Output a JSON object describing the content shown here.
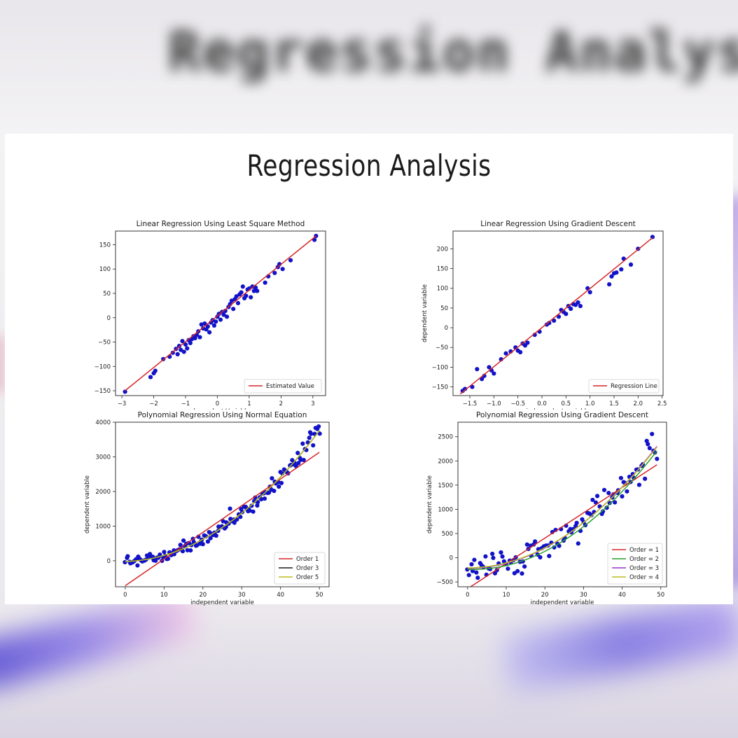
{
  "page_title": "Regression Analysis",
  "colors": {
    "point": "#1212c8",
    "order1": "#d62728",
    "order2": "#2ca02c",
    "order3": "#9b30c8",
    "order3_black": "#1a1a1a",
    "order4": "#bcbd22",
    "order5": "#bcbd22"
  },
  "chart_data": [
    {
      "id": "c1",
      "type": "scatter",
      "title": "Linear Regression Using Least Square Method",
      "xlabel": "dependent Variable",
      "ylabel": "",
      "xlim": [
        -3.2,
        3.4
      ],
      "ylim": [
        -160,
        178
      ],
      "xticks": [
        -3,
        -2,
        -1,
        0,
        1,
        2,
        3
      ],
      "yticks": [
        -150,
        -100,
        -50,
        0,
        50,
        100,
        150
      ],
      "tick_labels_x": [
        "−3",
        "−2",
        "−1",
        "0",
        "1",
        "2",
        "3"
      ],
      "tick_labels_y": [
        "−150",
        "−100",
        "−50",
        "0",
        "50",
        "100",
        "150"
      ],
      "legend_position": "lower-right",
      "points": [
        [
          -2.9,
          -152
        ],
        [
          -2.1,
          -122
        ],
        [
          -2.0,
          -114
        ],
        [
          -1.95,
          -109
        ],
        [
          -1.7,
          -85
        ],
        [
          -1.5,
          -80
        ],
        [
          -1.4,
          -72
        ],
        [
          -1.3,
          -64
        ],
        [
          -1.25,
          -75
        ],
        [
          -1.2,
          -58
        ],
        [
          -1.15,
          -66
        ],
        [
          -1.1,
          -48
        ],
        [
          -1.05,
          -70
        ],
        [
          -1.0,
          -55
        ],
        [
          -0.95,
          -63
        ],
        [
          -0.9,
          -46
        ],
        [
          -0.85,
          -52
        ],
        [
          -0.8,
          -44
        ],
        [
          -0.75,
          -38
        ],
        [
          -0.7,
          -42
        ],
        [
          -0.65,
          -35
        ],
        [
          -0.6,
          -28
        ],
        [
          -0.55,
          -40
        ],
        [
          -0.5,
          -14
        ],
        [
          -0.45,
          -22
        ],
        [
          -0.4,
          -12
        ],
        [
          -0.35,
          -24
        ],
        [
          -0.3,
          -18
        ],
        [
          -0.25,
          -30
        ],
        [
          -0.2,
          -10
        ],
        [
          -0.15,
          -5
        ],
        [
          -0.1,
          -16
        ],
        [
          -0.05,
          -8
        ],
        [
          0.0,
          2
        ],
        [
          0.05,
          8
        ],
        [
          0.1,
          -4
        ],
        [
          0.15,
          12
        ],
        [
          0.2,
          6
        ],
        [
          0.25,
          14
        ],
        [
          0.3,
          2
        ],
        [
          0.35,
          22
        ],
        [
          0.4,
          28
        ],
        [
          0.45,
          35
        ],
        [
          0.5,
          18
        ],
        [
          0.55,
          38
        ],
        [
          0.6,
          44
        ],
        [
          0.65,
          30
        ],
        [
          0.7,
          48
        ],
        [
          0.75,
          52
        ],
        [
          0.8,
          64
        ],
        [
          0.85,
          40
        ],
        [
          0.9,
          45
        ],
        [
          0.95,
          58
        ],
        [
          1.0,
          60
        ],
        [
          1.05,
          42
        ],
        [
          1.1,
          64
        ],
        [
          1.15,
          55
        ],
        [
          1.2,
          62
        ],
        [
          1.25,
          55
        ],
        [
          1.5,
          72
        ],
        [
          1.6,
          85
        ],
        [
          1.8,
          92
        ],
        [
          1.9,
          104
        ],
        [
          1.95,
          110
        ],
        [
          2.05,
          100
        ],
        [
          2.3,
          118
        ],
        [
          3.05,
          160
        ],
        [
          3.1,
          168
        ]
      ],
      "series": [
        {
          "name": "Estimated Value",
          "color": "#d62728",
          "points": [
            [
              -2.9,
              -150
            ],
            [
              3.1,
              168
            ]
          ]
        }
      ]
    },
    {
      "id": "c2",
      "type": "scatter",
      "title": "Linear Regression Using Gradient Descent",
      "xlabel": "independent variable",
      "ylabel": "dependent variable",
      "xlim": [
        -1.85,
        2.52
      ],
      "ylim": [
        -172,
        245
      ],
      "xticks": [
        -1.5,
        -1.0,
        -0.5,
        0.0,
        0.5,
        1.0,
        1.5,
        2.0,
        2.5
      ],
      "yticks": [
        -150,
        -100,
        -50,
        0,
        50,
        100,
        150,
        200
      ],
      "tick_labels_x": [
        "−1.5",
        "−1.0",
        "−0.5",
        "0.0",
        "0.5",
        "1.0",
        "1.5",
        "2.0",
        "2.5"
      ],
      "tick_labels_y": [
        "−150",
        "−100",
        "−50",
        "0",
        "50",
        "100",
        "150",
        "200"
      ],
      "legend_position": "lower-right",
      "points": [
        [
          -1.65,
          -160
        ],
        [
          -1.6,
          -155
        ],
        [
          -1.45,
          -150
        ],
        [
          -1.35,
          -105
        ],
        [
          -1.25,
          -130
        ],
        [
          -1.2,
          -122
        ],
        [
          -1.1,
          -100
        ],
        [
          -1.05,
          -108
        ],
        [
          -1.0,
          -116
        ],
        [
          -0.85,
          -80
        ],
        [
          -0.75,
          -65
        ],
        [
          -0.65,
          -60
        ],
        [
          -0.55,
          -50
        ],
        [
          -0.5,
          -58
        ],
        [
          -0.45,
          -62
        ],
        [
          -0.4,
          -40
        ],
        [
          -0.35,
          -45
        ],
        [
          -0.3,
          -38
        ],
        [
          -0.15,
          -18
        ],
        [
          -0.05,
          -10
        ],
        [
          0.1,
          8
        ],
        [
          0.15,
          12
        ],
        [
          0.25,
          18
        ],
        [
          0.35,
          28
        ],
        [
          0.4,
          45
        ],
        [
          0.45,
          40
        ],
        [
          0.5,
          35
        ],
        [
          0.55,
          55
        ],
        [
          0.6,
          48
        ],
        [
          0.65,
          60
        ],
        [
          0.7,
          58
        ],
        [
          0.75,
          64
        ],
        [
          0.8,
          55
        ],
        [
          0.95,
          100
        ],
        [
          1.0,
          90
        ],
        [
          1.4,
          110
        ],
        [
          1.45,
          130
        ],
        [
          1.5,
          138
        ],
        [
          1.55,
          140
        ],
        [
          1.65,
          148
        ],
        [
          1.7,
          175
        ],
        [
          1.85,
          160
        ],
        [
          2.0,
          200
        ],
        [
          2.3,
          230
        ]
      ],
      "series": [
        {
          "name": "Regression Line",
          "color": "#d62728",
          "points": [
            [
              -1.7,
              -168
            ],
            [
              2.3,
              228
            ]
          ]
        }
      ]
    },
    {
      "id": "c3",
      "type": "scatter",
      "title": "Polynomial Regression Using Normal Equation",
      "xlabel": "independent variable",
      "ylabel": "dependent variable",
      "xlim": [
        -2.5,
        52.5
      ],
      "ylim": [
        -750,
        4000
      ],
      "xticks": [
        0,
        10,
        20,
        30,
        40,
        50
      ],
      "yticks": [
        0,
        1000,
        2000,
        3000,
        4000
      ],
      "tick_labels_x": [
        "0",
        "10",
        "20",
        "30",
        "40",
        "50"
      ],
      "tick_labels_y": [
        "0",
        "1000",
        "2000",
        "3000",
        "4000"
      ],
      "legend_position": "lower-right",
      "noise_seed": 7,
      "scatter_model": {
        "a": 1.45,
        "b": 3,
        "c": -20,
        "noise": 110,
        "x0": 0,
        "x1": 50,
        "n": 150
      },
      "series": [
        {
          "name": "Order 1",
          "color": "#d62728",
          "line": [
            [
              0,
              -720
            ],
            [
              50,
              3130
            ]
          ]
        },
        {
          "name": "Order 3",
          "color": "#1a1a1a",
          "poly": {
            "a": 1.45,
            "b": 3,
            "c": -20
          },
          "range": [
            0,
            50
          ]
        },
        {
          "name": "Order 5",
          "color": "#bcbd22",
          "poly": {
            "a": 1.45,
            "b": 3,
            "c": -20
          },
          "range": [
            0,
            50
          ]
        }
      ]
    },
    {
      "id": "c4",
      "type": "scatter",
      "title": "Polynomial Regression Using Gradient Descent",
      "xlabel": "independent variable",
      "ylabel": "dependent variable",
      "xlim": [
        -2.5,
        51.5
      ],
      "ylim": [
        -600,
        2800
      ],
      "xticks": [
        0,
        10,
        20,
        30,
        40,
        50
      ],
      "yticks": [
        -500,
        0,
        500,
        1000,
        1500,
        2000,
        2500
      ],
      "tick_labels_x": [
        "0",
        "10",
        "20",
        "30",
        "40",
        "50"
      ],
      "tick_labels_y": [
        "−500",
        "0",
        "500",
        "1000",
        "1500",
        "2000",
        "2500"
      ],
      "legend_position": "lower-right",
      "noise_seed": 13,
      "scatter_model": {
        "a": 1.05,
        "b": 0,
        "c": -220,
        "noise": 170,
        "x0": 0,
        "x1": 49,
        "n": 110
      },
      "series": [
        {
          "name": "Order = 1",
          "color": "#d62728",
          "line": [
            [
              0,
              -640
            ],
            [
              49,
              1920
            ]
          ]
        },
        {
          "name": "Order = 2",
          "color": "#2ca02c",
          "poly": {
            "a": 1.08,
            "b": -3,
            "c": -240
          },
          "range": [
            0,
            49
          ]
        },
        {
          "name": "Order = 3",
          "color": "#9b30c8",
          "poly": {
            "a": 1.05,
            "b": 0,
            "c": -220
          },
          "range": [
            0,
            49
          ]
        },
        {
          "name": "Order = 4",
          "color": "#bcbd22",
          "poly": {
            "a": 1.04,
            "b": 0,
            "c": -210
          },
          "range": [
            0,
            49
          ]
        }
      ]
    }
  ]
}
